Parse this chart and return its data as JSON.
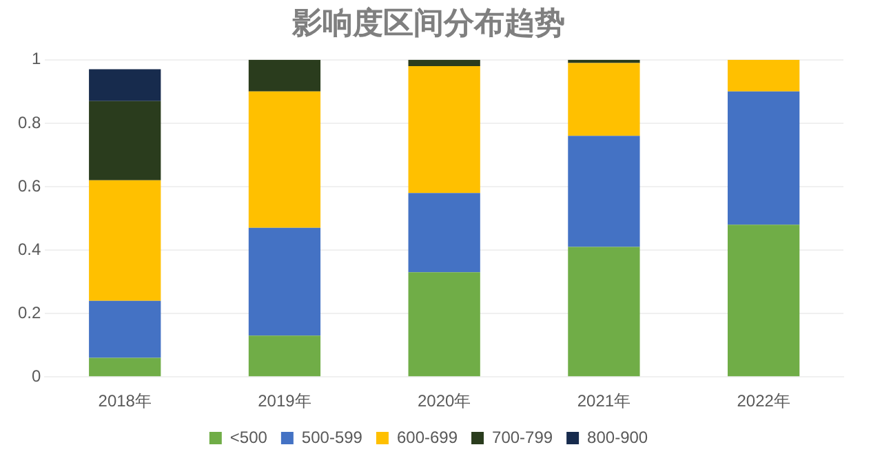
{
  "chart_data": {
    "type": "bar",
    "title": "影响度区间分布趋势",
    "stacked": true,
    "categories": [
      "2018年",
      "2019年",
      "2020年",
      "2021年",
      "2022年"
    ],
    "series": [
      {
        "name": "<500",
        "color": "#70ad47",
        "values": [
          0.06,
          0.13,
          0.33,
          0.41,
          0.48
        ]
      },
      {
        "name": "500-599",
        "color": "#4472c4",
        "values": [
          0.18,
          0.34,
          0.25,
          0.35,
          0.42
        ]
      },
      {
        "name": "600-699",
        "color": "#ffc000",
        "values": [
          0.38,
          0.43,
          0.4,
          0.23,
          0.1
        ]
      },
      {
        "name": "700-799",
        "color": "#2a3c1d",
        "values": [
          0.25,
          0.1,
          0.02,
          0.01,
          0
        ]
      },
      {
        "name": "800-900",
        "color": "#172b4d",
        "values": [
          0.1,
          0,
          0,
          0,
          0
        ]
      }
    ],
    "ylim": [
      0,
      1
    ],
    "yticks": [
      0,
      0.2,
      0.4,
      0.6,
      0.8,
      1
    ],
    "grid": "y",
    "legend": "bottom"
  }
}
